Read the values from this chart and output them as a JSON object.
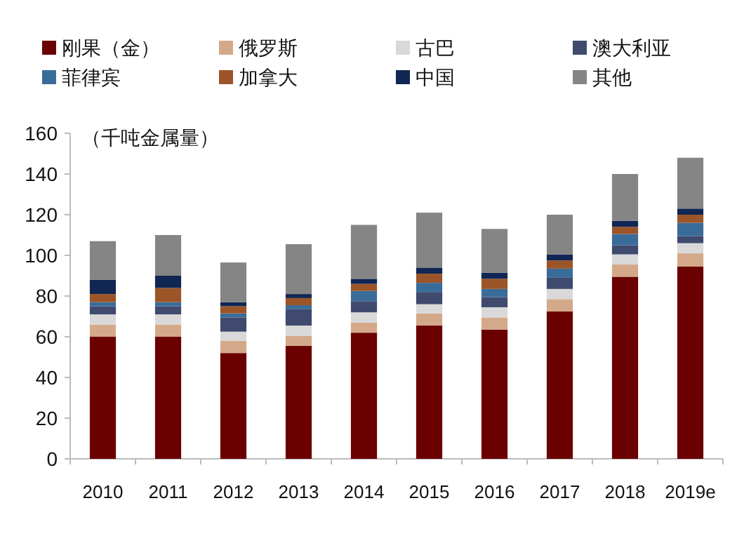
{
  "chart_data": {
    "type": "bar",
    "stacked": true,
    "categories": [
      "2010",
      "2011",
      "2012",
      "2013",
      "2014",
      "2015",
      "2016",
      "2017",
      "2018",
      "2019e"
    ],
    "series": [
      {
        "name": "刚果（金）",
        "color": "#6b0000",
        "values": [
          60,
          60,
          52,
          55.5,
          62,
          65.5,
          63.5,
          72.5,
          89.5,
          94.5
        ]
      },
      {
        "name": "俄罗斯",
        "color": "#d4a98a",
        "values": [
          6,
          6,
          6,
          5,
          5,
          6,
          6,
          6,
          6,
          6.5
        ]
      },
      {
        "name": "古巴",
        "color": "#d9d9d9",
        "values": [
          5,
          5,
          4.5,
          5,
          5,
          4.5,
          5,
          5,
          5,
          5
        ]
      },
      {
        "name": "澳大利亚",
        "color": "#3f4a6e",
        "values": [
          4,
          4,
          7,
          8,
          5.5,
          6,
          5,
          5.5,
          4.5,
          3.5
        ]
      },
      {
        "name": "菲律宾",
        "color": "#3a6c9a",
        "values": [
          2,
          2,
          2,
          2,
          5,
          4.5,
          4,
          4.5,
          5.5,
          6.5
        ]
      },
      {
        "name": "加拿大",
        "color": "#9c5528",
        "values": [
          4,
          7,
          3.5,
          3.5,
          3.5,
          4.5,
          5,
          4,
          3.5,
          4
        ]
      },
      {
        "name": "中国",
        "color": "#102653",
        "values": [
          7,
          6,
          2,
          2,
          2.5,
          3,
          3,
          3,
          3,
          3
        ]
      },
      {
        "name": "其他",
        "color": "#858585",
        "values": [
          19,
          20,
          19.5,
          24.5,
          26.5,
          27,
          21.5,
          19.5,
          23,
          25
        ]
      }
    ],
    "ylim": [
      0,
      160
    ],
    "yticks": [
      0,
      20,
      40,
      60,
      80,
      100,
      120,
      140,
      160
    ],
    "annotations": [
      "（千吨金属量）"
    ],
    "legend": "top",
    "grid": false
  }
}
